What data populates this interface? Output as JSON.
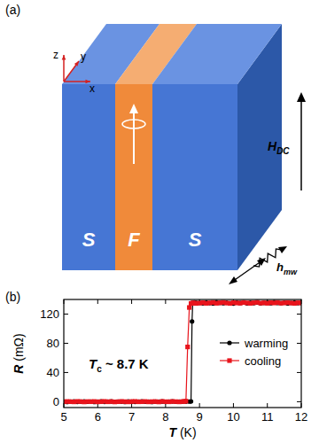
{
  "diagram": {
    "label": "(a)",
    "axes": [
      "x",
      "y",
      "z"
    ],
    "layers": [
      "S",
      "F",
      "S"
    ],
    "field": {
      "symbol": "H",
      "subscript": "DC"
    },
    "microwave": {
      "symbol": "h",
      "subscript": "mw"
    }
  },
  "chart_data": {
    "type": "line",
    "panel_label": "(b)",
    "x_label": "T (K)",
    "y_label": "R (mΩ)",
    "annotation": {
      "symbol": "T",
      "subscript": "c",
      "text": " ~ 8.7 K"
    },
    "xlim": [
      5,
      12
    ],
    "xticks": [
      5,
      6,
      7,
      8,
      9,
      10,
      11,
      12
    ],
    "ylim": [
      -8,
      140
    ],
    "yticks": [
      0,
      40,
      80,
      120
    ],
    "legend": "right",
    "series": [
      {
        "name": "warming",
        "color": "#000000",
        "marker": "circle",
        "x": [
          5.0,
          5.1,
          5.2,
          5.3,
          5.4,
          5.5,
          5.6,
          5.7,
          5.8,
          5.9,
          6.0,
          6.1,
          6.2,
          6.3,
          6.4,
          6.5,
          6.6,
          6.7,
          6.8,
          6.9,
          7.0,
          7.1,
          7.2,
          7.3,
          7.4,
          7.5,
          7.6,
          7.7,
          7.8,
          7.9,
          8.0,
          8.1,
          8.2,
          8.3,
          8.4,
          8.5,
          8.6,
          8.7,
          8.75,
          8.78,
          8.8,
          8.85,
          8.9,
          9.0,
          9.1,
          9.2,
          9.3,
          9.4,
          9.5,
          9.6,
          9.7,
          9.8,
          9.9,
          10.0,
          10.1,
          10.2,
          10.3,
          10.4,
          10.5,
          10.6,
          10.7,
          10.8,
          10.9,
          11.0,
          11.1,
          11.2,
          11.3,
          11.4,
          11.5,
          11.6,
          11.7,
          11.8,
          11.9,
          12.0
        ],
        "values": [
          0.2,
          -0.3,
          0.1,
          0.4,
          -0.2,
          0.0,
          0.3,
          -0.1,
          0.2,
          -0.4,
          0.1,
          0.3,
          -0.2,
          0.0,
          0.4,
          -0.1,
          0.2,
          0.1,
          -0.3,
          0.3,
          0.0,
          -0.2,
          0.2,
          0.4,
          -0.1,
          0.1,
          -0.3,
          0.2,
          0.0,
          0.3,
          -0.2,
          0.1,
          0.4,
          -0.1,
          0.2,
          0.0,
          0.1,
          0.2,
          0.4,
          110,
          135.2,
          136.0,
          135.5,
          135.4,
          134.8,
          135.9,
          135.1,
          134.6,
          136.2,
          135.3,
          134.9,
          135.7,
          135.0,
          134.5,
          135.8,
          135.2,
          136.0,
          134.7,
          135.5,
          135.1,
          135.9,
          134.8,
          135.4,
          135.6,
          134.9,
          136.1,
          135.2,
          135.0,
          135.7,
          134.6,
          135.3,
          135.8,
          135.1,
          135.5
        ]
      },
      {
        "name": "cooling",
        "color": "#e8141c",
        "marker": "square",
        "x": [
          5.0,
          5.1,
          5.2,
          5.3,
          5.4,
          5.5,
          5.6,
          5.7,
          5.8,
          5.9,
          6.0,
          6.1,
          6.2,
          6.3,
          6.4,
          6.5,
          6.6,
          6.7,
          6.8,
          6.9,
          7.0,
          7.1,
          7.2,
          7.3,
          7.4,
          7.5,
          7.6,
          7.7,
          7.8,
          7.9,
          8.0,
          8.1,
          8.2,
          8.3,
          8.4,
          8.5,
          8.55,
          8.6,
          8.65,
          8.7,
          8.75,
          8.8,
          8.85,
          8.9,
          9.0,
          9.1,
          9.2,
          9.3,
          9.4,
          9.5,
          9.6,
          9.7,
          9.8,
          9.9,
          10.0,
          10.1,
          10.2,
          10.3,
          10.4,
          10.5,
          10.6,
          10.7,
          10.8,
          10.9,
          11.0,
          11.1,
          11.2,
          11.3,
          11.4,
          11.5,
          11.6,
          11.7,
          11.8,
          11.9,
          12.0
        ],
        "values": [
          -0.1,
          0.3,
          0.0,
          -0.2,
          0.4,
          0.1,
          -0.3,
          0.2,
          0.0,
          0.3,
          -0.2,
          0.1,
          0.4,
          -0.1,
          0.2,
          -0.3,
          0.0,
          0.3,
          0.1,
          -0.2,
          0.2,
          0.4,
          -0.1,
          0.0,
          0.3,
          -0.2,
          0.1,
          0.2,
          -0.3,
          0.4,
          0.0,
          -0.1,
          0.3,
          0.1,
          -0.2,
          0.2,
          0.3,
          0.8,
          75,
          129,
          134.5,
          135.3,
          135.0,
          134.6,
          135.0,
          135.6,
          134.7,
          135.3,
          135.9,
          134.8,
          135.4,
          136.0,
          135.1,
          134.6,
          135.7,
          135.2,
          134.9,
          135.8,
          135.3,
          134.7,
          135.5,
          136.1,
          135.0,
          135.4,
          134.8,
          135.6,
          135.2,
          135.9,
          134.9,
          135.3,
          135.7,
          135.1,
          134.6,
          135.5,
          135.2
        ]
      }
    ]
  }
}
